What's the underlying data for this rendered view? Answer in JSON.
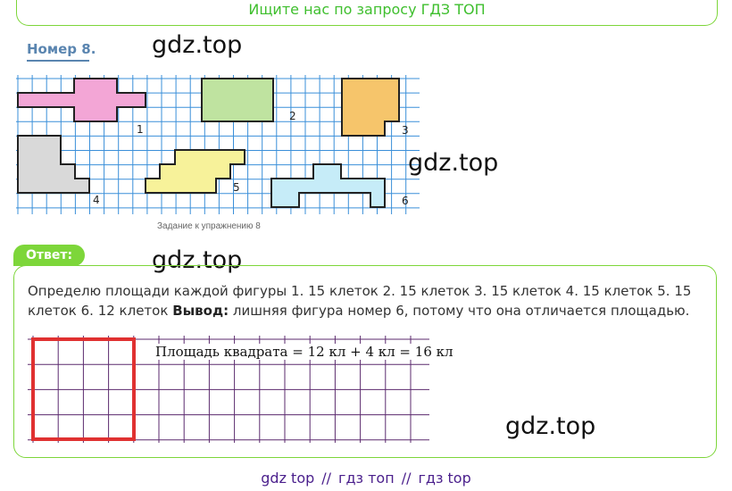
{
  "banner": "Ищите нас по запросу ГДЗ ТОП",
  "exercise_title": "Номер 8.",
  "watermark": "gdz.top",
  "figure_labels": [
    "1",
    "2",
    "3",
    "4",
    "5",
    "6"
  ],
  "figure_caption": "Задание к упражнению 8",
  "answer_tab": "Ответ:",
  "answer": {
    "text_1": "Определю площади каждой фигуры 1. 15 клеток 2. 15 клеток 3. 15 клеток 4. 15 клеток 5. 15 клеток 6. 12 клеток",
    "conclusion_label": "Вывод:",
    "text_2": "лишняя фигура номер 6, потому что она отличается площадью."
  },
  "formula": "Площадь квадрата = 12 кл + 4 кл = 16 кл",
  "footer": {
    "a": "gdz top",
    "sep": "//",
    "b": "гдз топ",
    "c": "гдз top"
  },
  "colors": {
    "banner_green": "#3fbf2e",
    "frame_green": "#7dd63a",
    "grid_blue": "#3a8fd9",
    "fig1": "#f3a6d6",
    "fig2": "#bfe3a0",
    "fig3": "#f6c56b",
    "fig4": "#d9d9d9",
    "fig5": "#f7f29a",
    "fig6": "#c6ecf8",
    "square_red": "#e03131",
    "grid_purple": "#5b2a6e"
  }
}
